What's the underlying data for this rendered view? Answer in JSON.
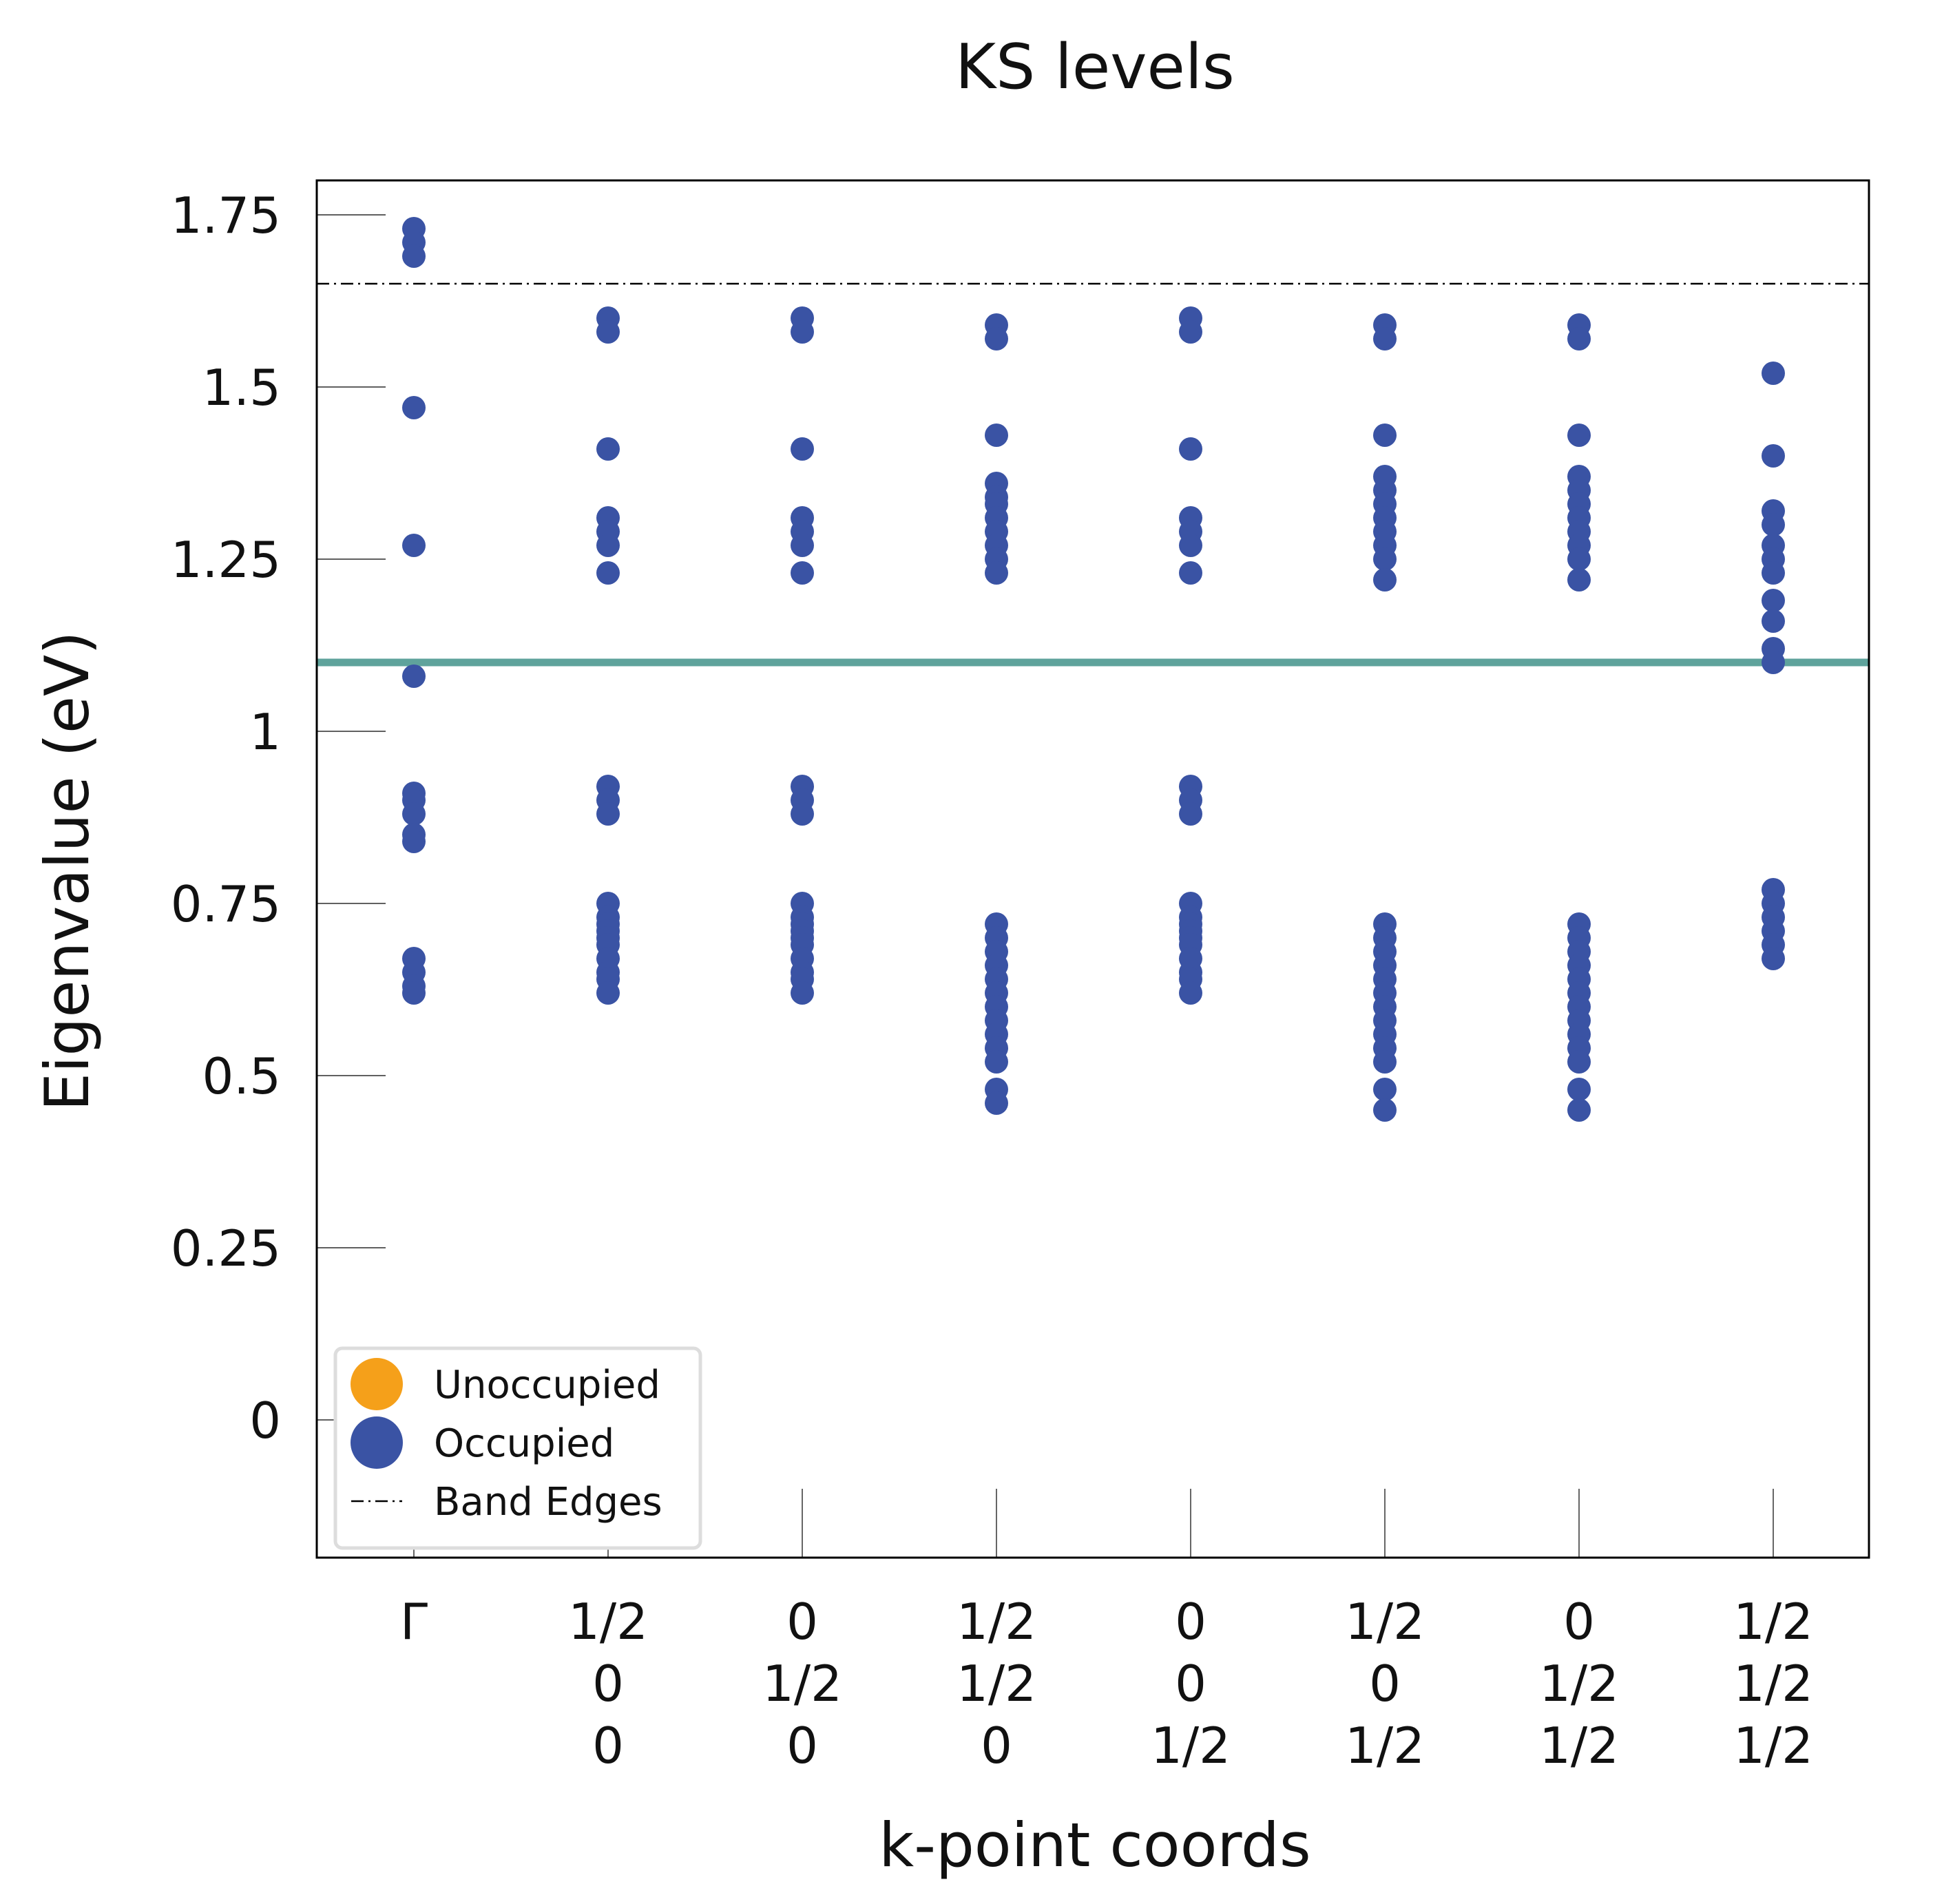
{
  "chart_data": {
    "type": "scatter",
    "title": "KS levels",
    "xlabel": "k-point coords",
    "ylabel": "Eigenvalue (eV)",
    "ylim": [
      -0.2,
      1.8
    ],
    "yticks": [
      0,
      0.25,
      0.5,
      0.75,
      1,
      1.25,
      1.5,
      1.75
    ],
    "ytick_labels": [
      "0",
      "0.25",
      "0.5",
      "0.75",
      "1",
      "1.25",
      "1.5",
      "1.75"
    ],
    "kpoints": [
      {
        "label": [
          "Γ"
        ]
      },
      {
        "label": [
          "1/2",
          "0",
          "0"
        ]
      },
      {
        "label": [
          "0",
          "1/2",
          "0"
        ]
      },
      {
        "label": [
          "1/2",
          "1/2",
          "0"
        ]
      },
      {
        "label": [
          "0",
          "0",
          "1/2"
        ]
      },
      {
        "label": [
          "1/2",
          "0",
          "1/2"
        ]
      },
      {
        "label": [
          "0",
          "1/2",
          "1/2"
        ]
      },
      {
        "label": [
          "1/2",
          "1/2",
          "1/2"
        ]
      }
    ],
    "band_edge_line": 1.65,
    "fermi_line": 1.1,
    "colors": {
      "occupied": "#3a53a4",
      "unoccupied": "#f5a01a",
      "fermi_line": "#5fa39c",
      "band_edges": "#000000"
    },
    "legend": {
      "placement": "lower-left",
      "entries": [
        "Unoccupied",
        "Occupied",
        "Band Edges"
      ]
    },
    "series": [
      {
        "name": "Occupied",
        "points": [
          [
            0,
            [
              1.73,
              1.71,
              1.69,
              1.47,
              1.27,
              1.08,
              0.91,
              0.9,
              0.88,
              0.85,
              0.84,
              0.67,
              0.65,
              0.63,
              0.62
            ]
          ],
          [
            1,
            [
              1.6,
              1.58,
              1.41,
              1.31,
              1.29,
              1.27,
              1.23,
              0.92,
              0.9,
              0.88,
              0.75,
              0.73,
              0.72,
              0.71,
              0.7,
              0.69,
              0.67,
              0.65,
              0.64,
              0.62
            ]
          ],
          [
            2,
            [
              1.6,
              1.58,
              1.41,
              1.31,
              1.29,
              1.27,
              1.23,
              0.92,
              0.9,
              0.88,
              0.75,
              0.73,
              0.72,
              0.71,
              0.7,
              0.69,
              0.67,
              0.65,
              0.64,
              0.62
            ]
          ],
          [
            3,
            [
              1.59,
              1.57,
              1.43,
              1.36,
              1.34,
              1.33,
              1.31,
              1.29,
              1.27,
              1.25,
              1.23,
              0.72,
              0.7,
              0.68,
              0.66,
              0.64,
              0.62,
              0.6,
              0.58,
              0.56,
              0.54,
              0.52,
              0.48,
              0.46
            ]
          ],
          [
            4,
            [
              1.6,
              1.58,
              1.41,
              1.31,
              1.29,
              1.27,
              1.23,
              0.92,
              0.9,
              0.88,
              0.75,
              0.73,
              0.72,
              0.71,
              0.7,
              0.69,
              0.67,
              0.65,
              0.64,
              0.62
            ]
          ],
          [
            5,
            [
              1.59,
              1.57,
              1.43,
              1.37,
              1.35,
              1.33,
              1.31,
              1.29,
              1.27,
              1.25,
              1.22,
              0.72,
              0.7,
              0.68,
              0.66,
              0.64,
              0.62,
              0.6,
              0.58,
              0.56,
              0.54,
              0.52,
              0.48,
              0.45
            ]
          ],
          [
            6,
            [
              1.59,
              1.57,
              1.43,
              1.37,
              1.35,
              1.33,
              1.31,
              1.29,
              1.27,
              1.25,
              1.22,
              0.72,
              0.7,
              0.68,
              0.66,
              0.64,
              0.62,
              0.6,
              0.58,
              0.56,
              0.54,
              0.52,
              0.48,
              0.45
            ]
          ],
          [
            7,
            [
              1.52,
              1.4,
              1.32,
              1.3,
              1.27,
              1.25,
              1.23,
              1.19,
              1.16,
              1.12,
              1.1,
              0.77,
              0.75,
              0.73,
              0.71,
              0.69,
              0.67
            ]
          ]
        ]
      }
    ]
  }
}
